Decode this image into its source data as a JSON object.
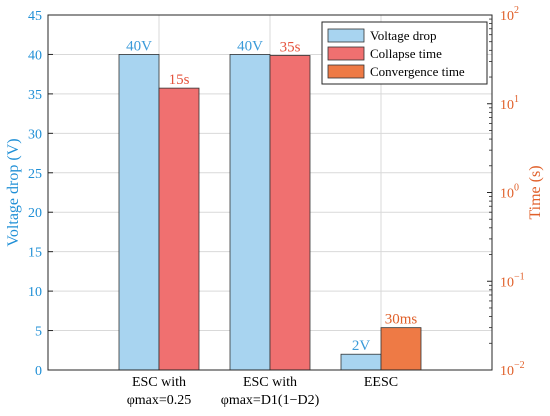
{
  "chart_data": {
    "type": "bar",
    "categories": [
      {
        "line1": "ESC with",
        "line2": "φmax=0.25"
      },
      {
        "line1": "ESC with",
        "line2": "φmax=D1(1−D2)"
      },
      {
        "line1": "EESC",
        "line2": ""
      }
    ],
    "left_axis": {
      "label": "Voltage drop (V)",
      "ylim": [
        0,
        45
      ],
      "ticks": [
        0,
        5,
        10,
        15,
        20,
        25,
        30,
        35,
        40,
        45
      ],
      "color": "#1f8fd6"
    },
    "right_axis": {
      "label": "Time (s)",
      "scale": "log",
      "ylim": [
        0.01,
        100
      ],
      "ticks": [
        0.01,
        0.1,
        1,
        10,
        100
      ],
      "tick_labels": [
        {
          "base": "10",
          "exp": "−2"
        },
        {
          "base": "10",
          "exp": "−1"
        },
        {
          "base": "10",
          "exp": "0"
        },
        {
          "base": "10",
          "exp": "1"
        },
        {
          "base": "10",
          "exp": "2"
        }
      ],
      "color": "#e0602a"
    },
    "series": [
      {
        "name": "Voltage drop",
        "axis": "left",
        "color": "#a8d4f0",
        "values": [
          40,
          40,
          2
        ],
        "labels": [
          "40V",
          "40V",
          "2V"
        ],
        "label_color": "#3a9ad9"
      },
      {
        "name": "Collapse time",
        "axis": "right",
        "color": "#f07070",
        "values": [
          15,
          35,
          null
        ],
        "labels": [
          "15s",
          "35s",
          ""
        ],
        "label_color": "#e5533d"
      },
      {
        "name": "Convergence time",
        "axis": "right",
        "color": "#ee7a45",
        "values": [
          null,
          null,
          0.03
        ],
        "labels": [
          "",
          "",
          "30ms"
        ],
        "label_color": "#e0602a"
      }
    ],
    "grid": true,
    "legend_position": "top-right"
  }
}
